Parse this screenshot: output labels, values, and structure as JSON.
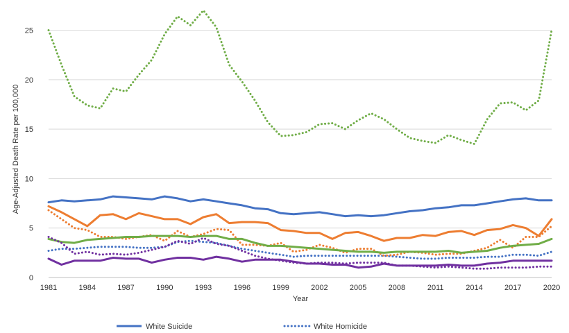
{
  "chart_data": {
    "type": "line",
    "title": "",
    "xlabel": "Year",
    "ylabel": "Age-Adjusted Death Rate per 100,000",
    "xlim": [
      1981,
      2020
    ],
    "ylim": [
      0,
      27
    ],
    "x_ticks": [
      "1981",
      "1984",
      "1987",
      "1990",
      "1993",
      "1996",
      "1999",
      "2002",
      "2005",
      "2008",
      "2011",
      "2014",
      "2017",
      "2020"
    ],
    "y_ticks": [
      "0",
      "5",
      "10",
      "15",
      "20",
      "25"
    ],
    "grid": "horizontal",
    "legend_position": "bottom",
    "x": [
      1981,
      1982,
      1983,
      1984,
      1985,
      1986,
      1987,
      1988,
      1989,
      1990,
      1991,
      1992,
      1993,
      1994,
      1995,
      1996,
      1997,
      1998,
      1999,
      2000,
      2001,
      2002,
      2003,
      2004,
      2005,
      2006,
      2007,
      2008,
      2009,
      2010,
      2011,
      2012,
      2013,
      2014,
      2015,
      2016,
      2017,
      2018,
      2019,
      2020
    ],
    "series": [
      {
        "name": "White Suicide",
        "color": "#4472C4",
        "style": "solid",
        "values": [
          7.6,
          7.8,
          7.7,
          7.8,
          7.9,
          8.2,
          8.1,
          8.0,
          7.9,
          8.2,
          8.0,
          7.7,
          7.9,
          7.7,
          7.5,
          7.3,
          7.0,
          6.9,
          6.5,
          6.4,
          6.5,
          6.6,
          6.4,
          6.2,
          6.3,
          6.2,
          6.3,
          6.5,
          6.7,
          6.8,
          7.0,
          7.1,
          7.3,
          7.3,
          7.5,
          7.7,
          7.9,
          8.0,
          7.8,
          7.8
        ]
      },
      {
        "name": "White Homicide",
        "color": "#4472C4",
        "style": "dotted",
        "values": [
          2.7,
          2.9,
          2.9,
          3.0,
          3.1,
          3.1,
          3.1,
          3.0,
          3.0,
          3.1,
          3.6,
          3.7,
          3.6,
          3.5,
          3.2,
          2.9,
          2.7,
          2.5,
          2.3,
          2.1,
          2.2,
          2.2,
          2.2,
          2.2,
          2.2,
          2.2,
          2.2,
          2.1,
          2.0,
          1.9,
          1.9,
          2.0,
          2.0,
          2.0,
          2.1,
          2.1,
          2.3,
          2.3,
          2.2,
          2.6
        ]
      },
      {
        "name": "",
        "color": "#ED7D31",
        "style": "solid",
        "values": [
          7.2,
          6.6,
          5.9,
          5.2,
          6.3,
          6.4,
          5.9,
          6.5,
          6.2,
          5.9,
          5.9,
          5.4,
          6.1,
          6.4,
          5.5,
          5.6,
          5.6,
          5.5,
          4.8,
          4.7,
          4.5,
          4.5,
          3.9,
          4.5,
          4.6,
          4.2,
          3.7,
          4.0,
          4.0,
          4.3,
          4.2,
          4.6,
          4.7,
          4.3,
          4.8,
          4.9,
          5.3,
          5.0,
          4.2,
          5.9
        ]
      },
      {
        "name": "",
        "color": "#ED7D31",
        "style": "dotted",
        "values": [
          6.8,
          5.9,
          5.0,
          4.8,
          4.1,
          4.1,
          3.9,
          4.1,
          4.3,
          3.7,
          4.7,
          4.1,
          4.4,
          4.9,
          4.8,
          3.3,
          3.3,
          3.2,
          3.5,
          2.6,
          2.8,
          3.3,
          3.0,
          2.5,
          2.9,
          2.9,
          2.2,
          2.3,
          2.6,
          2.5,
          2.3,
          2.4,
          2.4,
          2.7,
          3.0,
          3.8,
          3.0,
          4.1,
          4.1,
          5.2
        ]
      },
      {
        "name": "",
        "color": "#70AD47",
        "style": "solid",
        "values": [
          3.9,
          3.6,
          3.5,
          3.8,
          3.9,
          4.0,
          4.1,
          4.1,
          4.2,
          4.2,
          4.2,
          4.1,
          4.2,
          4.2,
          3.9,
          3.9,
          3.5,
          3.2,
          3.2,
          3.1,
          3.0,
          2.9,
          2.8,
          2.7,
          2.6,
          2.6,
          2.5,
          2.6,
          2.6,
          2.6,
          2.6,
          2.7,
          2.5,
          2.6,
          2.7,
          3.0,
          3.2,
          3.3,
          3.4,
          3.9
        ]
      },
      {
        "name": "",
        "color": "#70AD47",
        "style": "dotted",
        "values": [
          25.0,
          21.5,
          18.3,
          17.4,
          17.1,
          19.1,
          18.8,
          20.5,
          22.0,
          24.6,
          26.4,
          25.5,
          27.0,
          25.3,
          21.5,
          19.8,
          17.9,
          15.7,
          14.3,
          14.4,
          14.7,
          15.5,
          15.6,
          15.0,
          15.9,
          16.6,
          16.0,
          15.0,
          14.1,
          13.8,
          13.6,
          14.4,
          13.9,
          13.5,
          16.0,
          17.6,
          17.7,
          16.9,
          17.9,
          25.0
        ]
      },
      {
        "name": "",
        "color": "#7030A0",
        "style": "solid",
        "values": [
          1.9,
          1.3,
          1.7,
          1.7,
          1.7,
          2.0,
          1.9,
          1.9,
          1.5,
          1.8,
          2.0,
          2.0,
          1.8,
          2.1,
          1.9,
          1.6,
          1.8,
          1.8,
          1.8,
          1.6,
          1.4,
          1.4,
          1.3,
          1.3,
          1.0,
          1.1,
          1.4,
          1.2,
          1.2,
          1.2,
          1.2,
          1.3,
          1.2,
          1.2,
          1.4,
          1.5,
          1.7,
          1.7,
          1.7,
          1.7
        ]
      },
      {
        "name": "",
        "color": "#7030A0",
        "style": "dotted",
        "values": [
          4.1,
          3.5,
          2.4,
          2.6,
          2.3,
          2.4,
          2.3,
          2.5,
          2.8,
          3.1,
          3.7,
          3.4,
          4.0,
          3.4,
          3.2,
          2.7,
          2.2,
          1.9,
          1.7,
          1.5,
          1.4,
          1.5,
          1.5,
          1.4,
          1.5,
          1.5,
          1.5,
          1.2,
          1.2,
          1.1,
          1.0,
          1.1,
          1.0,
          0.9,
          0.9,
          1.0,
          1.0,
          1.0,
          1.1,
          1.1
        ]
      }
    ]
  }
}
